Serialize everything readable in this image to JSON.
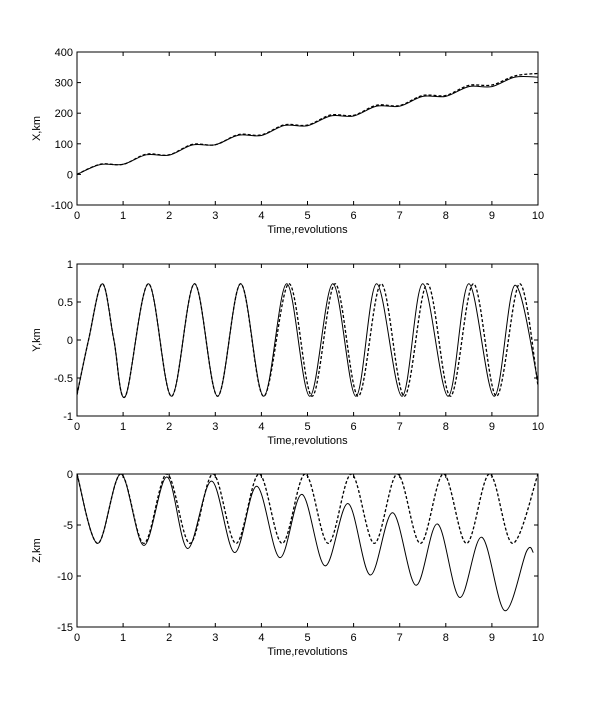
{
  "chart_data": [
    {
      "type": "line",
      "xlabel": "Time,revolutions",
      "ylabel": "X,km",
      "xlim": [
        0,
        10
      ],
      "ylim": [
        -100,
        400
      ],
      "xticks": [
        "0",
        "1",
        "2",
        "3",
        "4",
        "5",
        "6",
        "7",
        "8",
        "9",
        "10"
      ],
      "yticks": [
        "-100",
        "0",
        "100",
        "200",
        "300",
        "400"
      ],
      "grid": false,
      "series": [
        {
          "style": "solid",
          "color": "#000000",
          "x": [
            0,
            0.5,
            1,
            1.5,
            2,
            2.5,
            3,
            3.5,
            4,
            4.5,
            5,
            5.5,
            6,
            6.5,
            7,
            7.5,
            8,
            8.5,
            9,
            9.5,
            10
          ],
          "y": [
            0,
            32,
            33,
            64,
            63,
            96,
            97,
            128,
            127,
            160,
            159,
            191,
            191,
            223,
            223,
            255,
            255,
            287,
            287,
            318,
            318
          ]
        },
        {
          "style": "dashed",
          "color": "#000000",
          "x": [
            0,
            0.5,
            1,
            1.5,
            2,
            2.5,
            3,
            3.5,
            4,
            4.5,
            5,
            5.5,
            6,
            6.5,
            7,
            7.5,
            8,
            8.5,
            9,
            9.5,
            10
          ],
          "y": [
            0,
            33,
            33,
            66,
            64,
            98,
            97,
            130,
            129,
            162,
            161,
            194,
            193,
            226,
            225,
            258,
            258,
            291,
            292,
            322,
            330
          ]
        }
      ]
    },
    {
      "type": "line",
      "xlabel": "Time,revolutions",
      "ylabel": "Y,km",
      "xlim": [
        0,
        10
      ],
      "ylim": [
        -1,
        1
      ],
      "xticks": [
        "0",
        "1",
        "2",
        "3",
        "4",
        "5",
        "6",
        "7",
        "8",
        "9",
        "10"
      ],
      "yticks": [
        "-1",
        "-0.5",
        "0",
        "0.5",
        "1"
      ],
      "grid": false,
      "series": [
        {
          "style": "solid",
          "color": "#000000",
          "x": [
            0,
            0.25,
            0.55,
            0.8,
            1.05,
            1.55,
            2.05,
            2.55,
            3.05,
            3.55,
            4.05,
            4.55,
            5.05,
            5.55,
            6.05,
            6.5,
            7.05,
            7.5,
            8.05,
            8.5,
            9.05,
            9.5,
            10
          ],
          "y": [
            -0.72,
            0,
            0.74,
            0,
            -0.74,
            0.74,
            -0.74,
            0.74,
            -0.74,
            0.74,
            -0.74,
            0.74,
            -0.74,
            0.74,
            -0.74,
            0.74,
            -0.74,
            0.74,
            -0.74,
            0.74,
            -0.74,
            0.72,
            -0.55
          ]
        },
        {
          "style": "dashed",
          "color": "#000000",
          "x": [
            0,
            0.25,
            0.55,
            0.8,
            1.05,
            1.55,
            2.05,
            2.55,
            3.05,
            3.55,
            4.05,
            4.6,
            5.1,
            5.6,
            6.1,
            6.6,
            7.1,
            7.6,
            8.1,
            8.6,
            9.1,
            9.6,
            10
          ],
          "y": [
            -0.72,
            0,
            0.74,
            0,
            -0.74,
            0.74,
            -0.74,
            0.74,
            -0.74,
            0.74,
            -0.74,
            0.74,
            -0.74,
            0.74,
            -0.74,
            0.74,
            -0.74,
            0.74,
            -0.74,
            0.74,
            -0.74,
            0.74,
            -0.6
          ]
        }
      ]
    },
    {
      "type": "line",
      "xlabel": "Time,revolutions",
      "ylabel": "Z,km",
      "xlim": [
        0,
        10
      ],
      "ylim": [
        -15,
        0
      ],
      "xticks": [
        "0",
        "1",
        "2",
        "3",
        "4",
        "5",
        "6",
        "7",
        "8",
        "9",
        "10"
      ],
      "yticks": [
        "-15",
        "-10",
        "-5",
        "0"
      ],
      "grid": false,
      "series": [
        {
          "style": "solid",
          "color": "#000000",
          "x": [
            0,
            0.45,
            0.95,
            1.45,
            1.95,
            2.4,
            2.92,
            3.42,
            3.9,
            4.4,
            4.88,
            5.38,
            5.88,
            6.36,
            6.85,
            7.35,
            7.82,
            8.3,
            8.78,
            9.28,
            9.75,
            9.9
          ],
          "y": [
            0,
            -6.8,
            0,
            -7.0,
            -0.3,
            -7.3,
            -0.7,
            -7.7,
            -1.2,
            -8.2,
            -2.0,
            -9.0,
            -2.9,
            -9.9,
            -3.8,
            -10.9,
            -4.9,
            -12.1,
            -6.2,
            -13.4,
            -7.6,
            -7.7
          ]
        },
        {
          "style": "dashed",
          "color": "#000000",
          "x": [
            0,
            0.45,
            0.95,
            1.45,
            1.95,
            2.45,
            2.95,
            3.45,
            3.95,
            4.45,
            4.95,
            5.45,
            5.95,
            6.45,
            6.95,
            7.45,
            7.95,
            8.45,
            8.95,
            9.45,
            10
          ],
          "y": [
            0,
            -6.8,
            0,
            -6.8,
            0,
            -6.8,
            0,
            -6.8,
            0,
            -6.8,
            0,
            -6.8,
            0,
            -6.8,
            0,
            -6.8,
            0,
            -6.8,
            0,
            -6.8,
            0
          ]
        }
      ]
    }
  ]
}
